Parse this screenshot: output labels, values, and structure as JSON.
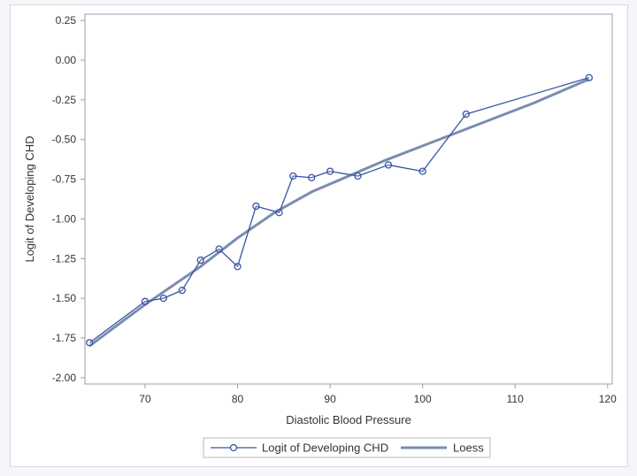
{
  "chart_data": {
    "type": "line",
    "title": "",
    "xlabel": "Diastolic Blood Pressure",
    "ylabel": "Logit of Developing CHD",
    "xlim": [
      63.5,
      120.5
    ],
    "ylim": [
      -2.04,
      0.29
    ],
    "x_ticks": [
      70,
      80,
      90,
      100,
      110,
      120
    ],
    "x_tick_labels": [
      "70",
      "80",
      "90",
      "100",
      "110",
      "120"
    ],
    "y_ticks": [
      0.25,
      0,
      -0.25,
      -0.5,
      -0.75,
      -1.0,
      -1.25,
      -1.5,
      -1.75,
      -2.0
    ],
    "y_tick_labels": [
      "0.25",
      "0.00",
      "-0.25",
      "-0.50",
      "-0.75",
      "-1.00",
      "-1.25",
      "-1.50",
      "-1.75",
      "-2.00"
    ],
    "series": [
      {
        "name": "Logit of Developing CHD",
        "style": "line-markers",
        "color": "#3a53a4",
        "x": [
          64,
          70,
          72,
          74,
          76,
          78,
          80,
          82,
          84.5,
          86,
          88,
          90,
          93,
          96.3,
          100,
          104.7,
          118
        ],
        "y": [
          -1.78,
          -1.52,
          -1.5,
          -1.45,
          -1.26,
          -1.19,
          -1.3,
          -0.92,
          -0.96,
          -0.73,
          -0.74,
          -0.7,
          -0.73,
          -0.66,
          -0.7,
          -0.34,
          -0.11
        ]
      },
      {
        "name": "Loess",
        "style": "line",
        "color": "#7a8db0",
        "x": [
          64,
          70,
          76,
          80,
          84,
          88,
          92,
          96,
          100,
          104,
          108,
          112,
          118
        ],
        "y": [
          -1.8,
          -1.54,
          -1.3,
          -1.12,
          -0.96,
          -0.83,
          -0.73,
          -0.63,
          -0.54,
          -0.45,
          -0.36,
          -0.27,
          -0.12
        ]
      }
    ],
    "legend": {
      "position": "bottom",
      "entries": [
        "Logit of Developing CHD",
        "Loess"
      ]
    }
  }
}
